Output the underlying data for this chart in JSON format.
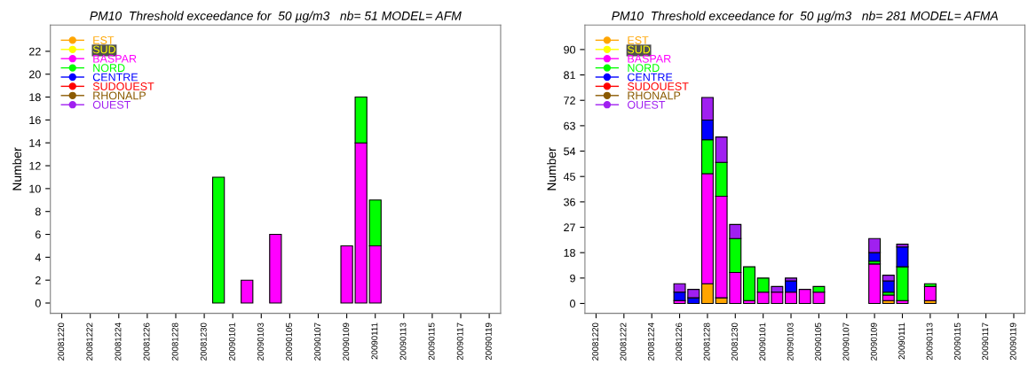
{
  "chart_data": [
    {
      "type": "bar",
      "stacked": true,
      "title": "PM10  Threshold exceedance for  50 µg/m3   nb= 51 MODEL= AFM",
      "ylabel": "Number",
      "legend": "top left",
      "marker": "circle",
      "grid": false,
      "categories": [
        "20081220",
        null,
        "20081222",
        null,
        "20081224",
        null,
        "20081226",
        null,
        "20081228",
        null,
        "20081230",
        null,
        "20090101",
        null,
        "20090103",
        null,
        "20090105",
        null,
        "20090107",
        null,
        "20090109",
        null,
        "20090111",
        null,
        "20090113",
        null,
        "20090115",
        null,
        "20090117",
        null,
        "20090119"
      ],
      "ylim": [
        -0.9,
        24.3
      ],
      "yticks": [
        0,
        2,
        4,
        6,
        8,
        10,
        12,
        14,
        16,
        18,
        20,
        22
      ],
      "series": [
        {
          "name": "EST",
          "color": "#ffa500",
          "values": [
            0,
            0,
            0,
            0,
            0,
            0,
            0,
            0,
            0,
            0,
            0,
            0,
            0,
            0,
            0,
            0,
            0,
            0,
            0,
            0,
            0,
            0,
            0,
            0,
            0,
            0,
            0,
            0,
            0,
            0,
            0
          ]
        },
        {
          "name": "SUD",
          "color": "#ffff00",
          "values": [
            0,
            0,
            0,
            0,
            0,
            0,
            0,
            0,
            0,
            0,
            0,
            0,
            0,
            0,
            0,
            0,
            0,
            0,
            0,
            0,
            0,
            0,
            0,
            0,
            0,
            0,
            0,
            0,
            0,
            0,
            0
          ]
        },
        {
          "name": "BASPAR",
          "color": "#ff00ff",
          "values": [
            0,
            0,
            0,
            0,
            0,
            0,
            0,
            0,
            0,
            0,
            0,
            0,
            0,
            2,
            0,
            6,
            0,
            0,
            0,
            0,
            5,
            14,
            5,
            0,
            0,
            0,
            0,
            0,
            0,
            0,
            0
          ]
        },
        {
          "name": "NORD",
          "color": "#00ff00",
          "values": [
            0,
            0,
            0,
            0,
            0,
            0,
            0,
            0,
            0,
            0,
            0,
            11,
            0,
            0,
            0,
            0,
            0,
            0,
            0,
            0,
            0,
            4,
            4,
            0,
            0,
            0,
            0,
            0,
            0,
            0,
            0
          ]
        },
        {
          "name": "CENTRE",
          "color": "#0000ff",
          "values": [
            0,
            0,
            0,
            0,
            0,
            0,
            0,
            0,
            0,
            0,
            0,
            0,
            0,
            0,
            0,
            0,
            0,
            0,
            0,
            0,
            0,
            0,
            0,
            0,
            0,
            0,
            0,
            0,
            0,
            0,
            0
          ]
        },
        {
          "name": "SUDOUEST",
          "color": "#ff0000",
          "values": [
            0,
            0,
            0,
            0,
            0,
            0,
            0,
            0,
            0,
            0,
            0,
            0,
            0,
            0,
            0,
            0,
            0,
            0,
            0,
            0,
            0,
            0,
            0,
            0,
            0,
            0,
            0,
            0,
            0,
            0,
            0
          ]
        },
        {
          "name": "RHONALP",
          "color": "#8b5a00",
          "values": [
            0,
            0,
            0,
            0,
            0,
            0,
            0,
            0,
            0,
            0,
            0,
            0,
            0,
            0,
            0,
            0,
            0,
            0,
            0,
            0,
            0,
            0,
            0,
            0,
            0,
            0,
            0,
            0,
            0,
            0,
            0
          ]
        },
        {
          "name": "OUEST",
          "color": "#a020f0",
          "values": [
            0,
            0,
            0,
            0,
            0,
            0,
            0,
            0,
            0,
            0,
            0,
            0,
            0,
            0,
            0,
            0,
            0,
            0,
            0,
            0,
            0,
            0,
            0,
            0,
            0,
            0,
            0,
            0,
            0,
            0,
            0
          ]
        }
      ]
    },
    {
      "type": "bar",
      "stacked": true,
      "title": "PM10  Threshold exceedance for  50 µg/m3   nb= 281 MODEL= AFMA",
      "ylabel": "Number",
      "legend": "top left",
      "marker": "circle",
      "grid": false,
      "categories": [
        "20081220",
        null,
        "20081222",
        null,
        "20081224",
        null,
        "20081226",
        null,
        "20081228",
        null,
        "20081230",
        null,
        "20090101",
        null,
        "20090103",
        null,
        "20090105",
        null,
        "20090107",
        null,
        "20090109",
        null,
        "20090111",
        null,
        "20090113",
        null,
        "20090115",
        null,
        "20090117",
        null,
        "20090119"
      ],
      "ylim": [
        -3.5,
        98.7
      ],
      "yticks": [
        0,
        9,
        18,
        27,
        36,
        45,
        54,
        63,
        72,
        81,
        90
      ],
      "series": [
        {
          "name": "EST",
          "color": "#ffa500",
          "values": [
            0,
            0,
            0,
            0,
            0,
            0,
            0,
            0,
            7,
            2,
            0,
            0,
            0,
            0,
            0,
            0,
            0,
            0,
            0,
            0,
            0,
            1,
            0,
            0,
            1,
            0,
            0,
            0,
            0,
            0,
            0
          ]
        },
        {
          "name": "SUD",
          "color": "#ffff00",
          "values": [
            0,
            0,
            0,
            0,
            0,
            0,
            0,
            0,
            0,
            0,
            0,
            0,
            0,
            0,
            0,
            0,
            0,
            0,
            0,
            0,
            0,
            0,
            0,
            0,
            0,
            0,
            0,
            0,
            0,
            0,
            0
          ]
        },
        {
          "name": "BASPAR",
          "color": "#ff00ff",
          "values": [
            0,
            0,
            0,
            0,
            0,
            0,
            1,
            0,
            39,
            36,
            11,
            1,
            4,
            4,
            4,
            5,
            4,
            0,
            0,
            0,
            14,
            2,
            1,
            0,
            5,
            0,
            0,
            0,
            0,
            0,
            0
          ]
        },
        {
          "name": "NORD",
          "color": "#00ff00",
          "values": [
            0,
            0,
            0,
            0,
            0,
            0,
            0,
            0,
            12,
            12,
            12,
            12,
            5,
            0,
            0,
            0,
            2,
            0,
            0,
            0,
            1,
            1,
            12,
            0,
            1,
            0,
            0,
            0,
            0,
            0,
            0
          ]
        },
        {
          "name": "CENTRE",
          "color": "#0000ff",
          "values": [
            0,
            0,
            0,
            0,
            0,
            0,
            3,
            2,
            7,
            0,
            0,
            0,
            0,
            0,
            4,
            0,
            0,
            0,
            0,
            0,
            3,
            4,
            7,
            0,
            0,
            0,
            0,
            0,
            0,
            0,
            0
          ]
        },
        {
          "name": "SUDOUEST",
          "color": "#ff0000",
          "values": [
            0,
            0,
            0,
            0,
            0,
            0,
            0,
            0,
            0,
            0,
            0,
            0,
            0,
            0,
            0,
            0,
            0,
            0,
            0,
            0,
            0,
            0,
            0,
            0,
            0,
            0,
            0,
            0,
            0,
            0,
            0
          ]
        },
        {
          "name": "RHONALP",
          "color": "#8b5a00",
          "values": [
            0,
            0,
            0,
            0,
            0,
            0,
            0,
            0,
            0,
            0,
            0,
            0,
            0,
            0,
            0,
            0,
            0,
            0,
            0,
            0,
            0,
            0,
            0,
            0,
            0,
            0,
            0,
            0,
            0,
            0,
            0
          ]
        },
        {
          "name": "OUEST",
          "color": "#a020f0",
          "values": [
            0,
            0,
            0,
            0,
            0,
            0,
            3,
            3,
            8,
            9,
            5,
            0,
            0,
            2,
            1,
            0,
            0,
            0,
            0,
            0,
            5,
            2,
            1,
            0,
            0,
            0,
            0,
            0,
            0,
            0,
            0
          ]
        }
      ]
    }
  ]
}
